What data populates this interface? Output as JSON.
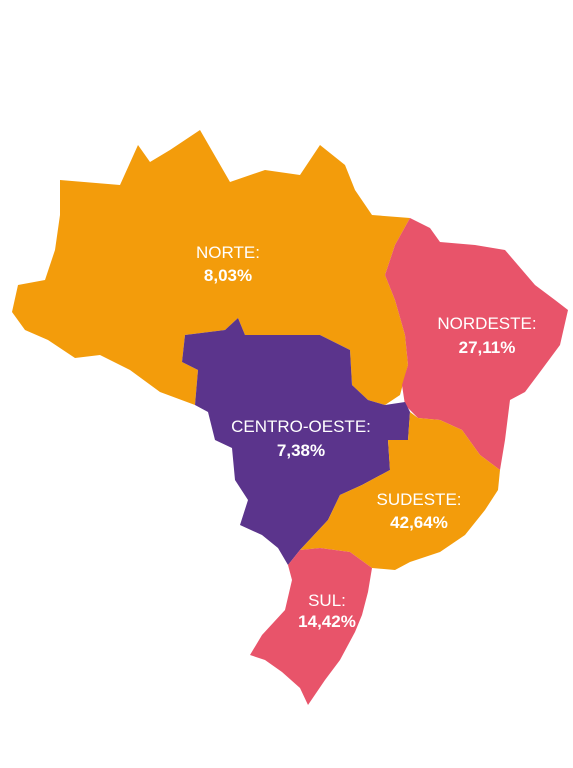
{
  "colors": {
    "orange": "#F39C0B",
    "coral": "#E8546A",
    "purple": "#5B348C",
    "label": "#FFFFFF",
    "background": "#FFFFFF"
  },
  "regions": {
    "norte": {
      "name": "NORTE:",
      "value": "8,03%"
    },
    "nordeste": {
      "name": "NORDESTE:",
      "value": "27,11%"
    },
    "centro_oeste": {
      "name": "CENTRO-OESTE:",
      "value": "7,38%"
    },
    "sudeste": {
      "name": "SUDESTE:",
      "value": "42,64%"
    },
    "sul": {
      "name": "SUL:",
      "value": "14,42%"
    }
  }
}
